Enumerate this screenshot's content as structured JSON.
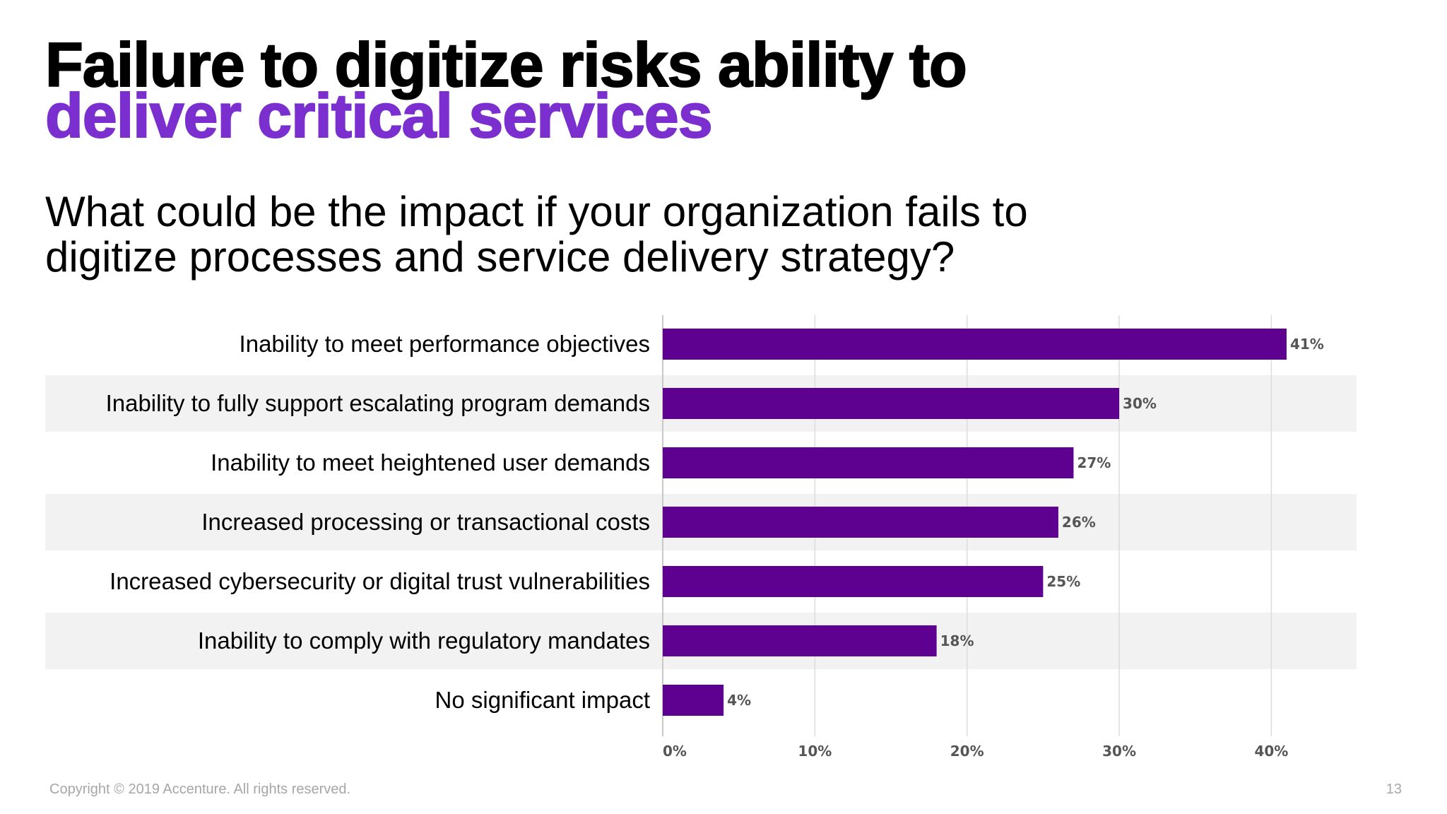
{
  "slide": {
    "title_line1": "Failure to digitize risks ability to",
    "title_line2": "deliver critical services",
    "question_line1": "What could be the impact if your organization fails to",
    "question_line2": "digitize processes and service delivery strategy?",
    "copyright": "Copyright © 2019 Accenture. All rights reserved.",
    "page_number": "13"
  },
  "colors": {
    "accent": "#7b2fcf",
    "bar": "#5e0090",
    "stripe": "#ececec"
  },
  "chart_data": {
    "type": "bar",
    "orientation": "horizontal",
    "categories": [
      "Inability to meet performance objectives",
      "Inability to fully support escalating program demands",
      "Inability to meet heightened user demands",
      "Increased processing or transactional costs",
      "Increased cybersecurity or digital trust vulnerabilities",
      "Inability to comply with regulatory mandates",
      "No significant impact"
    ],
    "values": [
      41,
      30,
      27,
      26,
      25,
      18,
      4
    ],
    "value_labels": [
      "41%",
      "30%",
      "27%",
      "26%",
      "25%",
      "18%",
      "4%"
    ],
    "xticks": [
      0,
      10,
      20,
      30,
      40
    ],
    "xtick_labels": [
      "0%",
      "10%",
      "20%",
      "30%",
      "40%"
    ],
    "xlim": [
      0,
      45.6
    ],
    "grid": true
  }
}
